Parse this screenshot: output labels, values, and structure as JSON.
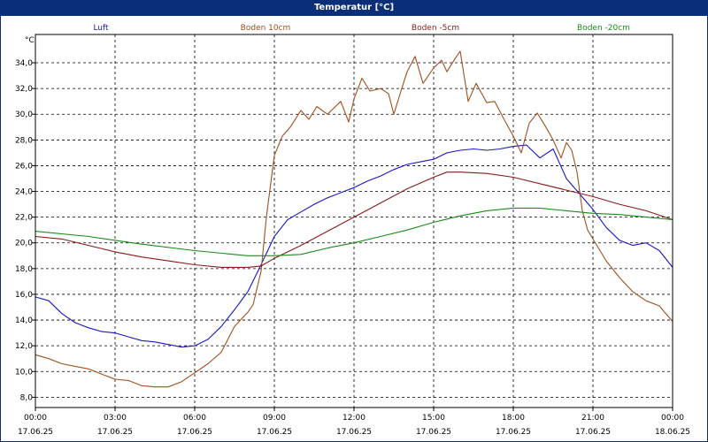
{
  "chart_data": {
    "type": "line",
    "title": "Temperatur [°C]",
    "ylabel": "°C",
    "ylim": [
      7.2,
      36.2
    ],
    "yticks": [
      "8,0",
      "10,0",
      "12,0",
      "14,0",
      "16,0",
      "18,0",
      "20,0",
      "22,0",
      "24,0",
      "26,0",
      "28,0",
      "30,0",
      "32,0",
      "34,0"
    ],
    "ytick_values": [
      8,
      10,
      12,
      14,
      16,
      18,
      20,
      22,
      24,
      26,
      28,
      30,
      32,
      34
    ],
    "xlim": [
      0,
      24
    ],
    "xticks": [
      {
        "time": "00:00",
        "date": "17.06.25"
      },
      {
        "time": "03:00",
        "date": "17.06.25"
      },
      {
        "time": "06:00",
        "date": "17.06.25"
      },
      {
        "time": "09:00",
        "date": "17.06.25"
      },
      {
        "time": "12:00",
        "date": "17.06.25"
      },
      {
        "time": "15:00",
        "date": "17.06.25"
      },
      {
        "time": "18:00",
        "date": "17.06.25"
      },
      {
        "time": "21:00",
        "date": "17.06.25"
      },
      {
        "time": "00:00",
        "date": "18.06.25"
      }
    ],
    "grid": true,
    "legend_position": "top",
    "series": [
      {
        "name": "Luft",
        "color": "#1818c8",
        "points": [
          [
            0,
            15.8
          ],
          [
            0.5,
            15.5
          ],
          [
            1,
            14.5
          ],
          [
            1.5,
            13.8
          ],
          [
            2,
            13.4
          ],
          [
            2.5,
            13.1
          ],
          [
            3,
            13.0
          ],
          [
            3.5,
            12.7
          ],
          [
            4,
            12.4
          ],
          [
            4.5,
            12.3
          ],
          [
            5,
            12.1
          ],
          [
            5.5,
            11.9
          ],
          [
            6,
            12.0
          ],
          [
            6.5,
            12.5
          ],
          [
            7,
            13.5
          ],
          [
            7.5,
            14.8
          ],
          [
            8,
            16.2
          ],
          [
            8.5,
            18.3
          ],
          [
            9,
            20.5
          ],
          [
            9.5,
            21.8
          ],
          [
            10,
            22.4
          ],
          [
            10.5,
            23.0
          ],
          [
            11,
            23.5
          ],
          [
            11.5,
            23.9
          ],
          [
            12,
            24.3
          ],
          [
            12.5,
            24.8
          ],
          [
            13,
            25.2
          ],
          [
            13.5,
            25.7
          ],
          [
            14,
            26.1
          ],
          [
            14.5,
            26.3
          ],
          [
            15,
            26.5
          ],
          [
            15.5,
            27.0
          ],
          [
            16,
            27.2
          ],
          [
            16.5,
            27.3
          ],
          [
            17,
            27.2
          ],
          [
            17.5,
            27.3
          ],
          [
            18,
            27.5
          ],
          [
            18.5,
            27.6
          ],
          [
            19,
            26.6
          ],
          [
            19.5,
            27.3
          ],
          [
            20,
            25.0
          ],
          [
            20.5,
            23.8
          ],
          [
            21,
            22.6
          ],
          [
            21.5,
            21.2
          ],
          [
            22,
            20.2
          ],
          [
            22.5,
            19.8
          ],
          [
            23,
            20.0
          ],
          [
            23.5,
            19.4
          ],
          [
            24,
            18.1
          ]
        ]
      },
      {
        "name": "Boden 10cm",
        "color": "#a0501e",
        "points": [
          [
            0,
            11.3
          ],
          [
            0.5,
            11.0
          ],
          [
            1,
            10.6
          ],
          [
            1.5,
            10.4
          ],
          [
            2,
            10.2
          ],
          [
            2.5,
            9.8
          ],
          [
            3,
            9.4
          ],
          [
            3.5,
            9.3
          ],
          [
            4,
            8.9
          ],
          [
            4.5,
            8.8
          ],
          [
            5,
            8.8
          ],
          [
            5.5,
            9.2
          ],
          [
            6,
            9.9
          ],
          [
            6.5,
            10.6
          ],
          [
            7,
            11.5
          ],
          [
            7.5,
            13.5
          ],
          [
            8,
            14.6
          ],
          [
            8.2,
            15.2
          ],
          [
            8.5,
            17.8
          ],
          [
            8.7,
            22.0
          ],
          [
            9,
            26.8
          ],
          [
            9.3,
            28.3
          ],
          [
            9.6,
            29.0
          ],
          [
            10,
            30.3
          ],
          [
            10.3,
            29.6
          ],
          [
            10.6,
            30.6
          ],
          [
            11,
            30.0
          ],
          [
            11.5,
            31.0
          ],
          [
            11.8,
            29.4
          ],
          [
            12,
            31.2
          ],
          [
            12.3,
            32.8
          ],
          [
            12.6,
            31.8
          ],
          [
            13,
            32.0
          ],
          [
            13.3,
            31.6
          ],
          [
            13.5,
            30.0
          ],
          [
            13.8,
            32.0
          ],
          [
            14,
            33.3
          ],
          [
            14.3,
            34.5
          ],
          [
            14.6,
            32.4
          ],
          [
            15,
            33.6
          ],
          [
            15.3,
            34.2
          ],
          [
            15.5,
            33.3
          ],
          [
            15.8,
            34.3
          ],
          [
            16,
            34.9
          ],
          [
            16.3,
            31.0
          ],
          [
            16.6,
            32.4
          ],
          [
            17,
            30.9
          ],
          [
            17.3,
            31.0
          ],
          [
            17.6,
            29.8
          ],
          [
            18,
            28.3
          ],
          [
            18.3,
            27.0
          ],
          [
            18.6,
            29.3
          ],
          [
            18.9,
            30.1
          ],
          [
            19.2,
            29.1
          ],
          [
            19.5,
            28.0
          ],
          [
            19.8,
            26.6
          ],
          [
            20,
            27.8
          ],
          [
            20.2,
            27.2
          ],
          [
            20.4,
            25.5
          ],
          [
            20.6,
            22.5
          ],
          [
            20.8,
            21.0
          ],
          [
            21,
            20.3
          ],
          [
            21.5,
            18.6
          ],
          [
            22,
            17.3
          ],
          [
            22.5,
            16.2
          ],
          [
            23,
            15.5
          ],
          [
            23.5,
            15.1
          ],
          [
            23.7,
            14.6
          ],
          [
            24,
            13.9
          ]
        ]
      },
      {
        "name": "Boden -5cm",
        "color": "#8b1a1a",
        "points": [
          [
            0,
            20.5
          ],
          [
            1,
            20.3
          ],
          [
            2,
            19.8
          ],
          [
            3,
            19.3
          ],
          [
            4,
            18.9
          ],
          [
            5,
            18.6
          ],
          [
            6,
            18.3
          ],
          [
            7,
            18.1
          ],
          [
            8,
            18.1
          ],
          [
            8.5,
            18.2
          ],
          [
            9,
            18.8
          ],
          [
            10,
            19.8
          ],
          [
            11,
            20.9
          ],
          [
            12,
            22.0
          ],
          [
            13,
            23.1
          ],
          [
            14,
            24.2
          ],
          [
            15,
            25.1
          ],
          [
            15.5,
            25.5
          ],
          [
            16,
            25.5
          ],
          [
            17,
            25.4
          ],
          [
            18,
            25.1
          ],
          [
            19,
            24.6
          ],
          [
            20,
            24.1
          ],
          [
            21,
            23.6
          ],
          [
            22,
            23.0
          ],
          [
            23,
            22.5
          ],
          [
            24,
            21.8
          ]
        ]
      },
      {
        "name": "Boden -20cm",
        "color": "#1a8c1a",
        "points": [
          [
            0,
            20.9
          ],
          [
            2,
            20.5
          ],
          [
            4,
            19.9
          ],
          [
            6,
            19.4
          ],
          [
            8,
            19.0
          ],
          [
            9,
            19.0
          ],
          [
            10,
            19.1
          ],
          [
            11,
            19.6
          ],
          [
            12,
            20.0
          ],
          [
            13,
            20.5
          ],
          [
            14,
            21.0
          ],
          [
            15,
            21.6
          ],
          [
            16,
            22.1
          ],
          [
            17,
            22.5
          ],
          [
            18,
            22.7
          ],
          [
            19,
            22.7
          ],
          [
            20,
            22.5
          ],
          [
            21,
            22.3
          ],
          [
            22,
            22.2
          ],
          [
            23,
            22.0
          ],
          [
            24,
            21.8
          ]
        ]
      }
    ]
  }
}
